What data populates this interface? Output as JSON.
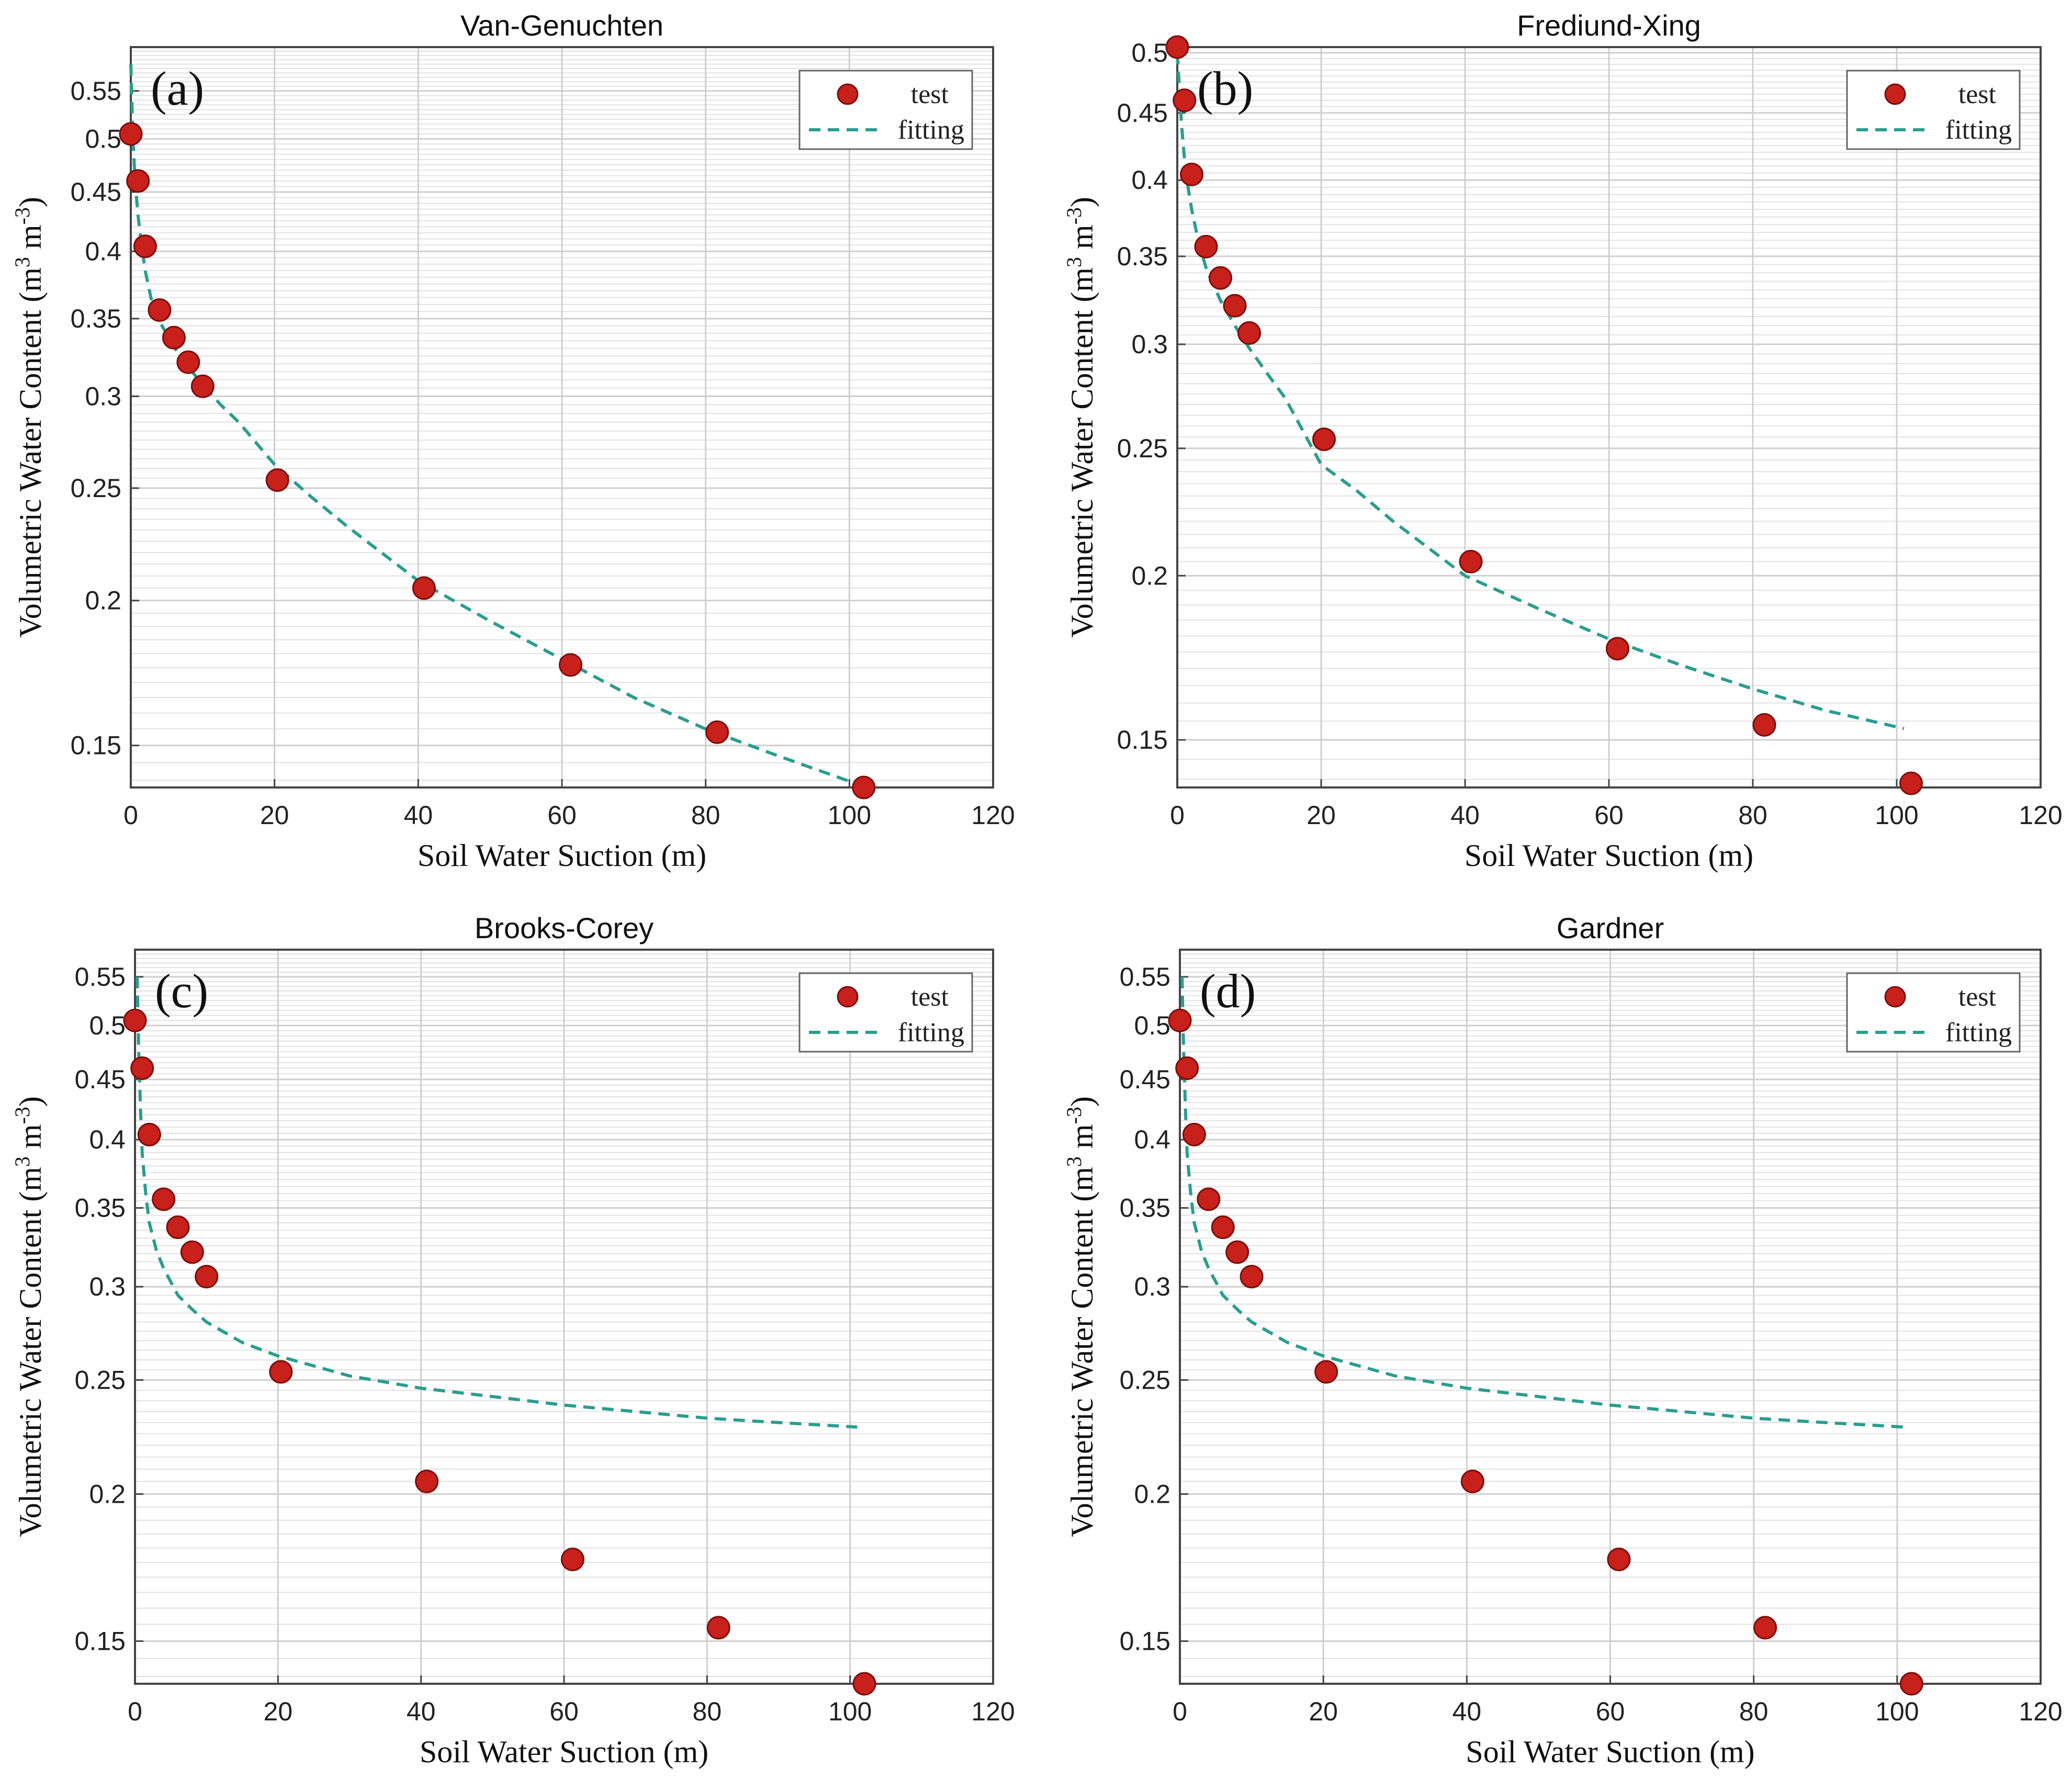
{
  "figure": {
    "colors": {
      "test": "#c8201b",
      "test_edge": "#7a0f0c",
      "fitting": "#2a9d8f"
    }
  },
  "chart_data": [
    {
      "type": "scatter",
      "panel": "(a)",
      "title": "Van-Genuchten",
      "xlabel": "Soil Water Suction (m)",
      "ylabel": "Volumetric  Water  Content (m³ m⁻³)",
      "ylabel_main": "Volumetric  Water  Content (m",
      "ylabel_sup1": "3",
      "ylabel_mid": " m",
      "ylabel_sup2": "-3",
      "ylabel_end": ")",
      "xlim": [
        0,
        120
      ],
      "ylim": [
        0.138,
        0.6
      ],
      "yscale": "log",
      "xticks": [
        0,
        20,
        40,
        60,
        80,
        100,
        120
      ],
      "xtick_labels": [
        "0",
        "20",
        "40",
        "60",
        "80",
        "100",
        "120"
      ],
      "yticks": [
        0.15,
        0.2,
        0.25,
        0.3,
        0.35,
        0.4,
        0.45,
        0.5,
        0.55
      ],
      "ytick_labels": [
        "0.15",
        "0.2",
        "0.25",
        "0.3",
        "0.35",
        "0.4",
        "0.45",
        "0.5",
        "0.55"
      ],
      "legend": {
        "position": "top-right",
        "entries": [
          "test",
          "fitting"
        ]
      },
      "series": [
        {
          "name": "test",
          "kind": "markers",
          "x": [
            0,
            1,
            2,
            4,
            6,
            8,
            10,
            20.4,
            40.8,
            61.2,
            81.6,
            102
          ],
          "y": [
            0.505,
            0.46,
            0.404,
            0.356,
            0.337,
            0.321,
            0.306,
            0.254,
            0.205,
            0.176,
            0.154,
            0.138
          ]
        },
        {
          "name": "fitting",
          "kind": "dashed",
          "x": [
            0,
            0.3,
            0.6,
            1,
            1.5,
            2,
            3,
            4,
            6,
            8,
            10,
            12.5,
            15,
            20,
            25,
            30,
            40,
            50,
            60,
            70,
            80,
            90,
            101
          ],
          "y": [
            0.58,
            0.5,
            0.46,
            0.43,
            0.405,
            0.385,
            0.36,
            0.348,
            0.331,
            0.318,
            0.307,
            0.295,
            0.285,
            0.262,
            0.246,
            0.232,
            0.208,
            0.192,
            0.178,
            0.165,
            0.155,
            0.147,
            0.139
          ]
        }
      ]
    },
    {
      "type": "scatter",
      "panel": "(b)",
      "title": "Frediund-Xing",
      "xlabel": "Soil Water Suction (m)",
      "ylabel": "Volumetric  Water  Content (m³ m⁻³)",
      "ylabel_main": "Volumetric  Water  Content (m",
      "ylabel_sup1": "3",
      "ylabel_mid": " m",
      "ylabel_sup2": "-3",
      "ylabel_end": ")",
      "xlim": [
        0,
        120
      ],
      "ylim": [
        0.138,
        0.505
      ],
      "yscale": "log",
      "xticks": [
        0,
        20,
        40,
        60,
        80,
        100,
        120
      ],
      "xtick_labels": [
        "0",
        "20",
        "40",
        "60",
        "80",
        "100",
        "120"
      ],
      "yticks": [
        0.15,
        0.2,
        0.25,
        0.3,
        0.35,
        0.4,
        0.45,
        0.5
      ],
      "ytick_labels": [
        "0.15",
        "0.2",
        "0.25",
        "0.3",
        "0.35",
        "0.4",
        "0.45",
        "0.5"
      ],
      "legend": {
        "position": "top-right",
        "entries": [
          "test",
          "fitting"
        ]
      },
      "series": [
        {
          "name": "test",
          "kind": "markers",
          "x": [
            0,
            1,
            2,
            4,
            6,
            8,
            10,
            20.4,
            40.8,
            61.2,
            81.6,
            102
          ],
          "y": [
            0.505,
            0.46,
            0.404,
            0.356,
            0.337,
            0.321,
            0.306,
            0.254,
            0.205,
            0.176,
            0.154,
            0.139
          ]
        },
        {
          "name": "fitting",
          "kind": "dashed",
          "x": [
            0,
            0.3,
            0.6,
            1,
            1.5,
            2,
            3,
            4,
            6,
            8,
            10,
            12.5,
            15,
            20,
            25,
            30,
            40,
            50,
            60,
            70,
            80,
            90,
            101
          ],
          "y": [
            0.5,
            0.47,
            0.44,
            0.415,
            0.395,
            0.38,
            0.358,
            0.343,
            0.324,
            0.31,
            0.298,
            0.285,
            0.273,
            0.243,
            0.232,
            0.22,
            0.2,
            0.189,
            0.179,
            0.171,
            0.164,
            0.158,
            0.153
          ]
        }
      ]
    },
    {
      "type": "scatter",
      "panel": "(c)",
      "title": "Brooks-Corey",
      "xlabel": "Soil Water Suction (m)",
      "ylabel": "Volumetric  Water  Content (m³ m⁻³)",
      "ylabel_main": "Volumetric  Water  Content (m",
      "ylabel_sup1": "3",
      "ylabel_mid": " m",
      "ylabel_sup2": "-3",
      "ylabel_end": ")",
      "xlim": [
        0,
        120
      ],
      "ylim": [
        0.138,
        0.58
      ],
      "yscale": "log",
      "xticks": [
        0,
        20,
        40,
        60,
        80,
        100,
        120
      ],
      "xtick_labels": [
        "0",
        "20",
        "40",
        "60",
        "80",
        "100",
        "120"
      ],
      "yticks": [
        0.15,
        0.2,
        0.25,
        0.3,
        0.35,
        0.4,
        0.45,
        0.5,
        0.55
      ],
      "ytick_labels": [
        "0.15",
        "0.2",
        "0.25",
        "0.3",
        "0.35",
        "0.4",
        "0.45",
        "0.5",
        "0.55"
      ],
      "legend": {
        "position": "top-right",
        "entries": [
          "test",
          "fitting"
        ]
      },
      "series": [
        {
          "name": "test",
          "kind": "markers",
          "x": [
            0,
            1,
            2,
            4,
            6,
            8,
            10,
            20.4,
            40.8,
            61.2,
            81.6,
            102
          ],
          "y": [
            0.505,
            0.46,
            0.404,
            0.356,
            0.337,
            0.321,
            0.306,
            0.254,
            0.205,
            0.176,
            0.154,
            0.138
          ]
        },
        {
          "name": "fitting",
          "kind": "dashed",
          "x": [
            0.3,
            0.5,
            0.8,
            1,
            1.5,
            2,
            3,
            4,
            6,
            8,
            10,
            15,
            20,
            30,
            40,
            50,
            60,
            70,
            80,
            90,
            101
          ],
          "y": [
            0.55,
            0.48,
            0.42,
            0.39,
            0.36,
            0.34,
            0.322,
            0.311,
            0.295,
            0.287,
            0.28,
            0.269,
            0.262,
            0.252,
            0.246,
            0.242,
            0.238,
            0.235,
            0.232,
            0.23,
            0.228
          ]
        }
      ]
    },
    {
      "type": "scatter",
      "panel": "(d)",
      "title": "Gardner",
      "xlabel": "Soil Water Suction (m)",
      "ylabel": "Volumetric  Water  Content (m³ m⁻³)",
      "ylabel_main": "Volumetric  Water  Content (m",
      "ylabel_sup1": "3",
      "ylabel_mid": " m",
      "ylabel_sup2": "-3",
      "ylabel_end": ")",
      "xlim": [
        0,
        120
      ],
      "ylim": [
        0.138,
        0.58
      ],
      "yscale": "log",
      "xticks": [
        0,
        20,
        40,
        60,
        80,
        100,
        120
      ],
      "xtick_labels": [
        "0",
        "20",
        "40",
        "60",
        "80",
        "100",
        "120"
      ],
      "yticks": [
        0.15,
        0.2,
        0.25,
        0.3,
        0.35,
        0.4,
        0.45,
        0.5,
        0.55
      ],
      "ytick_labels": [
        "0.15",
        "0.2",
        "0.25",
        "0.3",
        "0.35",
        "0.4",
        "0.45",
        "0.5",
        "0.55"
      ],
      "legend": {
        "position": "top-right",
        "entries": [
          "test",
          "fitting"
        ]
      },
      "series": [
        {
          "name": "test",
          "kind": "markers",
          "x": [
            0,
            1,
            2,
            4,
            6,
            8,
            10,
            20.4,
            40.8,
            61.2,
            81.6,
            102
          ],
          "y": [
            0.505,
            0.46,
            0.404,
            0.356,
            0.337,
            0.321,
            0.306,
            0.254,
            0.205,
            0.176,
            0.154,
            0.138
          ]
        },
        {
          "name": "fitting",
          "kind": "dashed",
          "x": [
            0.3,
            0.5,
            0.8,
            1,
            1.5,
            2,
            3,
            4,
            6,
            8,
            10,
            15,
            20,
            30,
            40,
            50,
            60,
            70,
            80,
            90,
            101
          ],
          "y": [
            0.55,
            0.48,
            0.42,
            0.39,
            0.36,
            0.34,
            0.322,
            0.311,
            0.295,
            0.287,
            0.28,
            0.269,
            0.262,
            0.252,
            0.246,
            0.242,
            0.238,
            0.235,
            0.232,
            0.23,
            0.228
          ]
        }
      ]
    }
  ]
}
